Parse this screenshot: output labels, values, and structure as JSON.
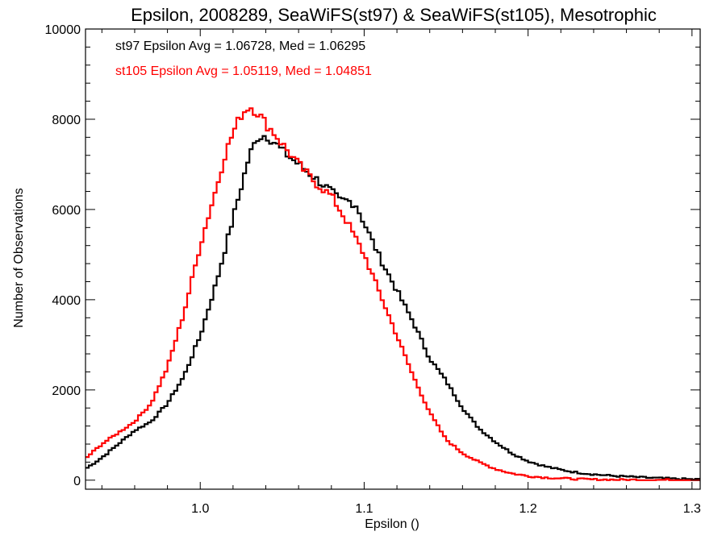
{
  "chart_data": {
    "type": "line",
    "title": "Epsilon, 2008289, SeaWiFS(st97) & SeaWiFS(st105), Mesotrophic",
    "xlabel": "Epsilon ()",
    "ylabel": "Number of Observations",
    "xlim": [
      0.93,
      1.305
    ],
    "ylim": [
      -200,
      10000
    ],
    "x_ticks": [
      1.0,
      1.1,
      1.2,
      1.3
    ],
    "x_tick_labels": [
      "1.0",
      "1.1",
      "1.2",
      "1.3"
    ],
    "y_ticks": [
      0,
      2000,
      4000,
      6000,
      8000,
      10000
    ],
    "y_tick_labels": [
      "0",
      "2000",
      "4000",
      "6000",
      "8000",
      "10000"
    ],
    "annotations": [
      {
        "text": "st97 Epsilon Avg = 1.06728, Med = 1.06295",
        "color": "#000000"
      },
      {
        "text": "st105 Epsilon Avg = 1.05119, Med = 1.04851",
        "color": "#ff0000"
      }
    ],
    "series": [
      {
        "color": "#000000",
        "step": true,
        "points": [
          [
            0.93,
            250
          ],
          [
            0.94,
            500
          ],
          [
            0.95,
            800
          ],
          [
            0.96,
            1100
          ],
          [
            0.97,
            1300
          ],
          [
            0.98,
            1700
          ],
          [
            0.99,
            2300
          ],
          [
            1.0,
            3200
          ],
          [
            1.01,
            4400
          ],
          [
            1.02,
            5800
          ],
          [
            1.025,
            6500
          ],
          [
            1.03,
            7200
          ],
          [
            1.035,
            7600
          ],
          [
            1.04,
            7650
          ],
          [
            1.045,
            7500
          ],
          [
            1.05,
            7300
          ],
          [
            1.06,
            7000
          ],
          [
            1.07,
            6700
          ],
          [
            1.08,
            6400
          ],
          [
            1.085,
            6200
          ],
          [
            1.09,
            6200
          ],
          [
            1.095,
            6100
          ],
          [
            1.1,
            5700
          ],
          [
            1.11,
            4900
          ],
          [
            1.12,
            4200
          ],
          [
            1.13,
            3500
          ],
          [
            1.14,
            2700
          ],
          [
            1.15,
            2200
          ],
          [
            1.16,
            1600
          ],
          [
            1.17,
            1150
          ],
          [
            1.18,
            850
          ],
          [
            1.19,
            600
          ],
          [
            1.2,
            420
          ],
          [
            1.21,
            310
          ],
          [
            1.22,
            230
          ],
          [
            1.23,
            170
          ],
          [
            1.24,
            130
          ],
          [
            1.25,
            100
          ],
          [
            1.26,
            80
          ],
          [
            1.27,
            60
          ],
          [
            1.28,
            45
          ],
          [
            1.29,
            30
          ],
          [
            1.3,
            20
          ]
        ]
      },
      {
        "color": "#ff0000",
        "step": true,
        "points": [
          [
            0.93,
            480
          ],
          [
            0.94,
            800
          ],
          [
            0.95,
            1050
          ],
          [
            0.96,
            1300
          ],
          [
            0.97,
            1700
          ],
          [
            0.98,
            2500
          ],
          [
            0.99,
            3700
          ],
          [
            1.0,
            5200
          ],
          [
            1.01,
            6500
          ],
          [
            1.015,
            7200
          ],
          [
            1.02,
            7700
          ],
          [
            1.025,
            8100
          ],
          [
            1.03,
            8300
          ],
          [
            1.035,
            8150
          ],
          [
            1.04,
            7900
          ],
          [
            1.045,
            7700
          ],
          [
            1.05,
            7450
          ],
          [
            1.06,
            7000
          ],
          [
            1.07,
            6600
          ],
          [
            1.08,
            6300
          ],
          [
            1.085,
            6000
          ],
          [
            1.09,
            5700
          ],
          [
            1.1,
            5000
          ],
          [
            1.11,
            4100
          ],
          [
            1.12,
            3200
          ],
          [
            1.13,
            2300
          ],
          [
            1.14,
            1500
          ],
          [
            1.15,
            900
          ],
          [
            1.16,
            600
          ],
          [
            1.17,
            400
          ],
          [
            1.18,
            250
          ],
          [
            1.19,
            150
          ],
          [
            1.2,
            90
          ],
          [
            1.21,
            60
          ],
          [
            1.22,
            40
          ],
          [
            1.23,
            25
          ],
          [
            1.24,
            15
          ],
          [
            1.26,
            8
          ],
          [
            1.3,
            5
          ]
        ]
      }
    ]
  }
}
